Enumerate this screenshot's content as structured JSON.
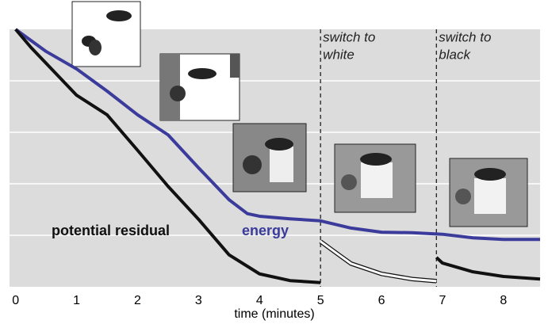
{
  "chart_data": {
    "type": "line",
    "x_label": "time (minutes)",
    "xlim": [
      -0.1,
      8.6
    ],
    "xticks": [
      0,
      1,
      2,
      3,
      4,
      5,
      6,
      7,
      8
    ],
    "ylim": [
      0,
      5
    ],
    "ygrid": [
      1,
      2,
      3,
      4
    ],
    "grid": true,
    "series": [
      {
        "name": "energy",
        "color": "#3b3b9c",
        "x": [
          0,
          0.5,
          1,
          1.5,
          2,
          2.5,
          3,
          3.5,
          3.8,
          4,
          4.5,
          5,
          5.5,
          6,
          6.5,
          7,
          7.5,
          8,
          8.6
        ],
        "values": [
          5.0,
          4.57,
          4.23,
          3.8,
          3.34,
          2.95,
          2.31,
          1.69,
          1.42,
          1.37,
          1.32,
          1.28,
          1.14,
          1.06,
          1.05,
          1.02,
          0.95,
          0.92,
          0.92
        ]
      },
      {
        "name": "potential residual",
        "color": "#111111",
        "x": [
          0,
          0.25,
          0.5,
          1,
          1.5,
          2,
          2.5,
          3,
          3.5,
          4,
          4.5,
          5
        ],
        "values": [
          5.0,
          4.65,
          4.34,
          3.72,
          3.34,
          2.65,
          1.95,
          1.31,
          0.62,
          0.25,
          0.12,
          0.08
        ]
      },
      {
        "color": "#ffffff",
        "x": [
          5,
          5.3,
          5.5,
          6,
          6.5,
          6.9
        ],
        "values": [
          0.88,
          0.62,
          0.45,
          0.25,
          0.15,
          0.11
        ]
      },
      {
        "color": "#111111",
        "x": [
          6.9,
          7,
          7.5,
          8,
          8.6
        ],
        "values": [
          0.57,
          0.46,
          0.29,
          0.2,
          0.15
        ]
      }
    ],
    "annotations": [
      {
        "x": 5,
        "text": [
          "switch to",
          "white"
        ]
      },
      {
        "x": 6.9,
        "text": [
          "switch to",
          "black"
        ]
      }
    ]
  }
}
